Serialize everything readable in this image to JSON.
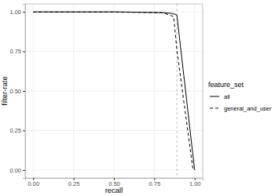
{
  "chart_data": {
    "type": "line",
    "x_label": "recall",
    "y_label": "filter-rate",
    "legend_title": "feature_set",
    "legend": "right",
    "grid": true,
    "xlim": [
      -0.05,
      1.05
    ],
    "ylim": [
      -0.05,
      1.05
    ],
    "xticks": [
      {
        "value": 0,
        "label": "0.00"
      },
      {
        "value": 0.25,
        "label": "0.25"
      },
      {
        "value": 0.5,
        "label": "0.50"
      },
      {
        "value": 0.75,
        "label": "0.75"
      },
      {
        "value": 1,
        "label": "1.00"
      }
    ],
    "yticks": [
      {
        "value": 0,
        "label": "0.00"
      },
      {
        "value": 0.25,
        "label": "0.25"
      },
      {
        "value": 0.5,
        "label": "0.50"
      },
      {
        "value": 0.75,
        "label": "0.75"
      },
      {
        "value": 1,
        "label": "1.00"
      }
    ],
    "vline": 0.89,
    "series": [
      {
        "name": "all",
        "color": "#000000",
        "line_style": "solid",
        "x": [
          0,
          0.5,
          0.8,
          0.86,
          0.89,
          1.0
        ],
        "values": [
          1.0,
          1.0,
          0.995,
          0.99,
          0.98,
          0.0
        ]
      },
      {
        "name": "general_and_user",
        "color": "#000000",
        "line_style": "dashed",
        "x": [
          0,
          0.5,
          0.8,
          0.87,
          0.89,
          0.99
        ],
        "values": [
          0.998,
          0.998,
          0.995,
          0.97,
          0.76,
          0.0
        ]
      }
    ]
  }
}
